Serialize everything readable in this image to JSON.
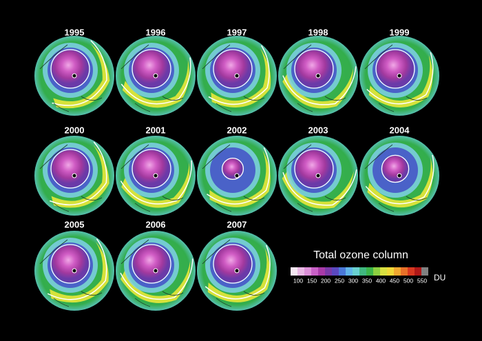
{
  "years": [
    "1995",
    "1996",
    "1997",
    "1998",
    "1999",
    "2000",
    "2001",
    "2002",
    "2003",
    "2004",
    "2005",
    "2006",
    "2007"
  ],
  "legend": {
    "title": "Total ozone column",
    "ticks": [
      100,
      150,
      200,
      250,
      300,
      350,
      400,
      450,
      500,
      550
    ],
    "unit": "DU"
  }
}
